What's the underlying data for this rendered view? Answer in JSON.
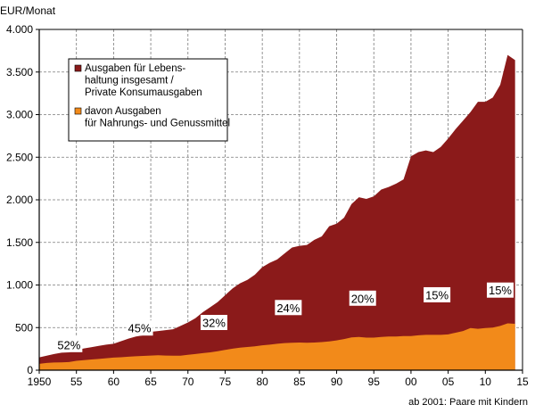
{
  "chart_data": {
    "type": "area",
    "y_unit_label": "EUR/Monat",
    "footnote": "ab 2001: Paare mit Kindern",
    "xlim": [
      1950,
      2015
    ],
    "ylim": [
      0,
      4000
    ],
    "x_ticks": [
      1950,
      1955,
      1960,
      1965,
      1970,
      1975,
      1980,
      1985,
      1990,
      1995,
      2000,
      2005,
      2010,
      2015
    ],
    "x_tick_labels": [
      "1950",
      "55",
      "60",
      "65",
      "70",
      "75",
      "80",
      "85",
      "90",
      "95",
      "00",
      "05",
      "10",
      "15"
    ],
    "y_ticks": [
      0,
      500,
      1000,
      1500,
      2000,
      2500,
      3000,
      3500,
      4000
    ],
    "y_tick_labels": [
      "0",
      "500",
      "1.000",
      "1.500",
      "2.000",
      "2.500",
      "3.000",
      "3.500",
      "4.000"
    ],
    "grid": true,
    "legend_position": "top-left",
    "x": [
      1950,
      1951,
      1952,
      1953,
      1954,
      1955,
      1956,
      1957,
      1958,
      1959,
      1960,
      1961,
      1962,
      1963,
      1964,
      1965,
      1966,
      1967,
      1968,
      1969,
      1970,
      1971,
      1972,
      1973,
      1974,
      1975,
      1976,
      1977,
      1978,
      1979,
      1980,
      1981,
      1982,
      1983,
      1984,
      1985,
      1986,
      1987,
      1988,
      1989,
      1990,
      1991,
      1992,
      1993,
      1994,
      1995,
      1996,
      1997,
      1998,
      1999,
      2000,
      2001,
      2002,
      2003,
      2004,
      2005,
      2006,
      2007,
      2008,
      2009,
      2010,
      2011,
      2012,
      2013,
      2014
    ],
    "series": [
      {
        "name": "Ausgaben für Lebens-\nhaltung insgesamt /\nPrivate Konsumausgaben",
        "color": "#8b1a1a",
        "values": [
          150,
          170,
          190,
          205,
          210,
          235,
          255,
          270,
          285,
          300,
          310,
          340,
          370,
          395,
          410,
          450,
          460,
          470,
          480,
          520,
          560,
          610,
          680,
          740,
          800,
          880,
          960,
          1020,
          1060,
          1120,
          1210,
          1260,
          1300,
          1370,
          1440,
          1460,
          1470,
          1530,
          1570,
          1690,
          1720,
          1790,
          1950,
          2030,
          2010,
          2040,
          2120,
          2150,
          2190,
          2240,
          2510,
          2560,
          2580,
          2560,
          2620,
          2720,
          2830,
          2930,
          3030,
          3150,
          3150,
          3200,
          3350,
          3700,
          3640
        ]
      },
      {
        "name": "davon Ausgaben\nfür Nahrungs- und Genussmittel",
        "color": "#f28a1a",
        "values": [
          75,
          85,
          90,
          92,
          95,
          110,
          118,
          125,
          132,
          140,
          148,
          152,
          158,
          163,
          168,
          172,
          175,
          172,
          170,
          170,
          180,
          190,
          200,
          210,
          222,
          238,
          253,
          265,
          272,
          280,
          292,
          300,
          310,
          318,
          322,
          325,
          322,
          325,
          330,
          338,
          350,
          365,
          385,
          390,
          382,
          382,
          390,
          395,
          395,
          400,
          400,
          410,
          415,
          415,
          415,
          420,
          440,
          460,
          495,
          485,
          495,
          500,
          520,
          550,
          545
        ]
      }
    ],
    "annotations": [
      {
        "x": 1954,
        "y": 295,
        "text": "52%"
      },
      {
        "x": 1963.5,
        "y": 490,
        "text": "45%"
      },
      {
        "x": 1973.5,
        "y": 555,
        "text": "32%"
      },
      {
        "x": 1983.5,
        "y": 730,
        "text": "24%"
      },
      {
        "x": 1993.5,
        "y": 840,
        "text": "20%"
      },
      {
        "x": 2003.5,
        "y": 880,
        "text": "15%"
      },
      {
        "x": 2012,
        "y": 935,
        "text": "15%"
      }
    ]
  }
}
